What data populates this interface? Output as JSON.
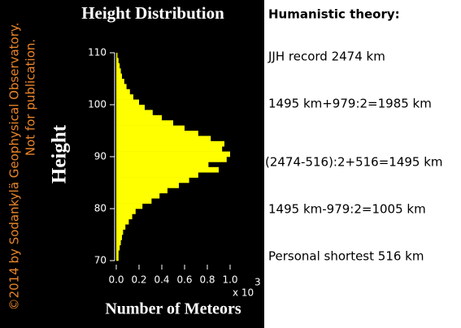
{
  "chart_data": {
    "type": "histogram",
    "orientation": "horizontal",
    "title": "Height Distribution",
    "y_label": "Height",
    "x_label": "Number of Meteors",
    "x_multiplier": "x 10",
    "x_multiplier_exponent": "3",
    "bins": [
      70,
      71,
      72,
      73,
      74,
      75,
      76,
      77,
      78,
      79,
      80,
      81,
      82,
      83,
      84,
      85,
      86,
      87,
      88,
      89,
      90,
      91,
      92,
      93,
      94,
      95,
      96,
      97,
      98,
      99,
      100,
      101,
      102,
      103,
      104,
      105,
      106,
      107,
      108,
      109,
      110
    ],
    "values": [
      0.02,
      0.02,
      0.03,
      0.04,
      0.05,
      0.06,
      0.08,
      0.11,
      0.14,
      0.17,
      0.23,
      0.31,
      0.38,
      0.45,
      0.55,
      0.64,
      0.72,
      0.9,
      0.81,
      0.97,
      1.0,
      0.93,
      0.95,
      0.83,
      0.72,
      0.6,
      0.5,
      0.4,
      0.32,
      0.25,
      0.2,
      0.15,
      0.12,
      0.09,
      0.07,
      0.05,
      0.04,
      0.03,
      0.02,
      0.01
    ],
    "color": "#ffff00",
    "xlim": [
      0,
      1.0
    ],
    "xticks": [
      {
        "value": 0,
        "label": "0.0"
      },
      {
        "value": 0.2,
        "label": "0.2"
      },
      {
        "value": 0.4,
        "label": "0.4"
      },
      {
        "value": 0.6,
        "label": "0.6"
      },
      {
        "value": 0.8,
        "label": "0.8"
      },
      {
        "value": 1.0,
        "label": "1.0"
      }
    ],
    "ylim": [
      70,
      110
    ],
    "yticks": [
      70,
      80,
      90,
      100,
      110
    ],
    "credit": [
      "©2014 by Sodankylä Geophysical Observatory.",
      "Not for publication."
    ]
  },
  "side_panel": {
    "title": "Humanistic theory:",
    "lines": [
      "JJH record 2474 km",
      "1495 km+979:2=1985 km",
      "(2474-516):2+516=1495 km",
      "1495 km-979:2=1005 km",
      "Personal shortest 516 km"
    ]
  }
}
